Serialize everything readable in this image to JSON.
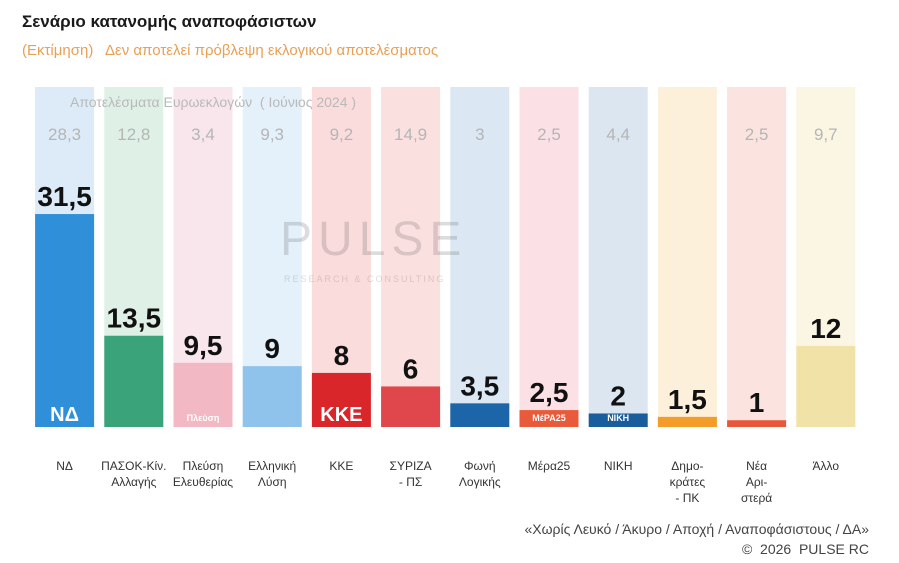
{
  "chart_data": {
    "type": "bar",
    "title": "Σενάριο κατανομής αναποφάσιστων",
    "subtitle": "(Εκτίμηση)   Δεν αποτελεί πρόβλεψη εκλογικού αποτελέσματος",
    "reference_header": "Αποτελέσματα Ευρωεκλογών  ( Ιούνιος 2024 )",
    "categories": [
      "ΝΔ",
      "ΠΑΣΟΚ-Κίν. Αλλαγής",
      "Πλεύση Ελευθερίας",
      "Ελληνική Λύση",
      "ΚΚΕ",
      "ΣΥΡΙΖΑ - ΠΣ",
      "Φωνή Λογικής",
      "Μέρα25",
      "ΝΙΚΗ",
      "Δημο-κράτες - ΠΚ",
      "Νέα Αρι-στερά",
      "Άλλο"
    ],
    "category_lines": [
      [
        "ΝΔ"
      ],
      [
        "ΠΑΣΟΚ-Κίν.",
        "Αλλαγής"
      ],
      [
        "Πλεύση",
        "Ελευθερίας"
      ],
      [
        "Ελληνική",
        "Λύση"
      ],
      [
        "ΚΚΕ"
      ],
      [
        "ΣΥΡΙΖΑ",
        "- ΠΣ"
      ],
      [
        "Φωνή",
        "Λογικής"
      ],
      [
        "Μέρα25"
      ],
      [
        "ΝΙΚΗ"
      ],
      [
        "Δημο-",
        "κράτες",
        "- ΠΚ"
      ],
      [
        "Νέα",
        "Αρι-",
        "στερά"
      ],
      [
        "Άλλο"
      ]
    ],
    "series": [
      {
        "values": [
          31.5,
          13.5,
          9.5,
          9,
          8,
          6,
          3.5,
          2.5,
          2,
          1.5,
          1,
          12
        ]
      },
      {
        "name": "Αποτελέσματα Ευρωεκλογών ( Ιούνιος 2024 )",
        "values": [
          28.3,
          12.8,
          3.4,
          9.3,
          9.2,
          14.9,
          3,
          2.5,
          4.4,
          null,
          2.5,
          9.7
        ]
      }
    ],
    "value_labels": [
      "31,5",
      "13,5",
      "9,5",
      "9",
      "8",
      "6",
      "3,5",
      "2,5",
      "2",
      "1,5",
      "1",
      "12"
    ],
    "reference_labels": [
      "28,3",
      "12,8",
      "3,4",
      "9,3",
      "9,2",
      "14,9",
      "3",
      "2,5",
      "4,4",
      "",
      "2,5",
      "9,7"
    ],
    "colors": [
      "#2f8fd8",
      "#3aa37a",
      "#f2b8c4",
      "#8fc3ec",
      "#d9262a",
      "#e0474c",
      "#1c65a8",
      "#e85a3a",
      "#1a5d9c",
      "#f39c2a",
      "#e8573a",
      "#f1e3a8"
    ],
    "bg_colors": [
      "#dcebf7",
      "#dff0e7",
      "#f9e6ec",
      "#e4f0fa",
      "#fbdcdc",
      "#fbe0e0",
      "#dbe7f3",
      "#fbe1e6",
      "#dbe6f1",
      "#fdf0da",
      "#fbe4df",
      "#fbf6e4"
    ],
    "logos": [
      "ΝΔ",
      "",
      "Πλεύση",
      "",
      "ΚΚΕ",
      "",
      "",
      "ΜέΡΑ25",
      "ΝΙΚΗ",
      "",
      "",
      ""
    ],
    "ylim": [
      0,
      35
    ],
    "grid": false,
    "legend": "none"
  },
  "watermark": {
    "brand": "PULSE",
    "tagline": "RESEARCH & CONSULTING"
  },
  "footnote": "«Χωρίς Λευκό / Άκυρο / Αποχή / Αναποφάσιστους / ΔΑ»",
  "copyright": "©  2026  PULSE RC"
}
